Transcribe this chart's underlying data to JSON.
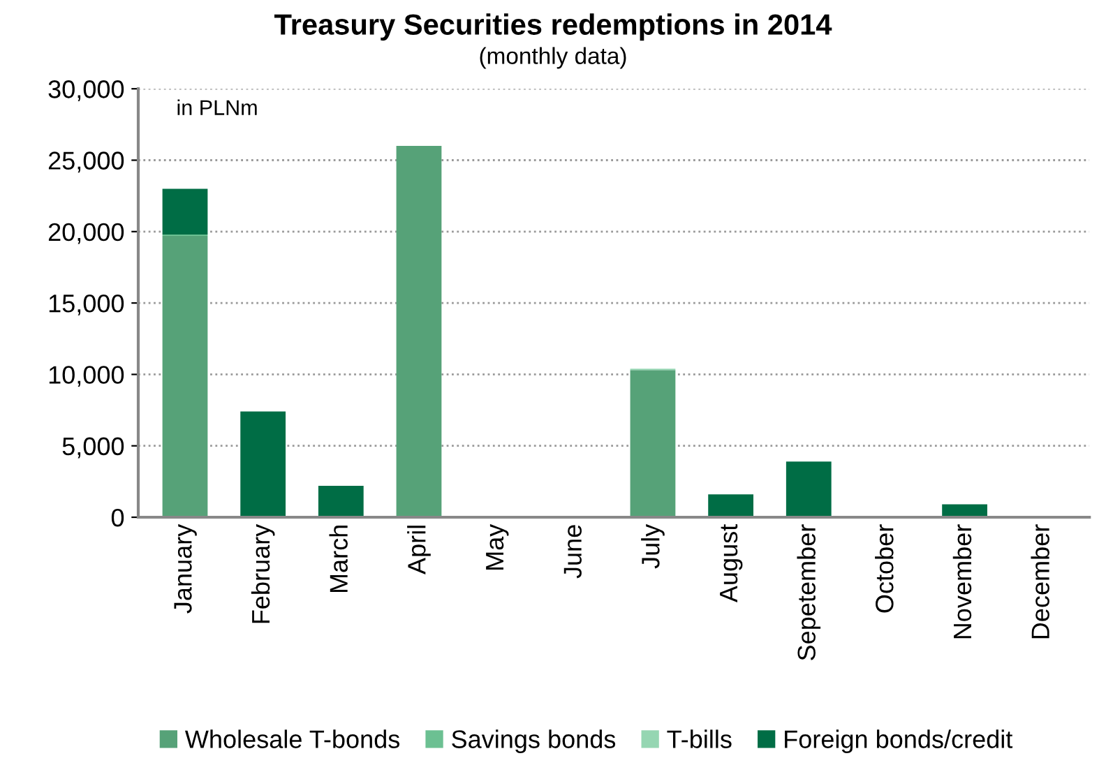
{
  "chart_data": {
    "type": "bar",
    "title": "Treasury Securities redemptions in 2014",
    "subtitle": "(monthly data)",
    "annotations": [
      "in PLNm"
    ],
    "categories": [
      "January",
      "February",
      "March",
      "April",
      "May",
      "June",
      "July",
      "August",
      "Sepetember",
      "October",
      "November",
      "December"
    ],
    "stacked": true,
    "series": [
      {
        "name": "Wholesale T-bonds",
        "color": "#56a278",
        "values": [
          19700,
          0,
          0,
          26000,
          0,
          0,
          10300,
          0,
          0,
          0,
          0,
          0
        ]
      },
      {
        "name": "Savings bonds",
        "color": "#6cc092",
        "values": [
          100,
          100,
          0,
          0,
          0,
          0,
          0,
          100,
          0,
          0,
          100,
          0
        ]
      },
      {
        "name": "T-bills",
        "color": "#95d6b2",
        "values": [
          0,
          0,
          0,
          0,
          0,
          0,
          100,
          0,
          0,
          0,
          0,
          0
        ]
      },
      {
        "name": "Foreign bonds/credit",
        "color": "#006d45",
        "values": [
          3200,
          7300,
          2200,
          0,
          0,
          0,
          0,
          1500,
          3900,
          0,
          800,
          0
        ]
      }
    ],
    "ylim": [
      0,
      30000
    ],
    "yticks": [
      {
        "value": 0,
        "label": "0"
      },
      {
        "value": 5000,
        "label": "5,000"
      },
      {
        "value": 10000,
        "label": "10,000"
      },
      {
        "value": 15000,
        "label": "15,000"
      },
      {
        "value": 20000,
        "label": "20,000"
      },
      {
        "value": 25000,
        "label": "25,000"
      },
      {
        "value": 30000,
        "label": "30,000"
      }
    ],
    "grid": "y",
    "legend": "bottom"
  }
}
